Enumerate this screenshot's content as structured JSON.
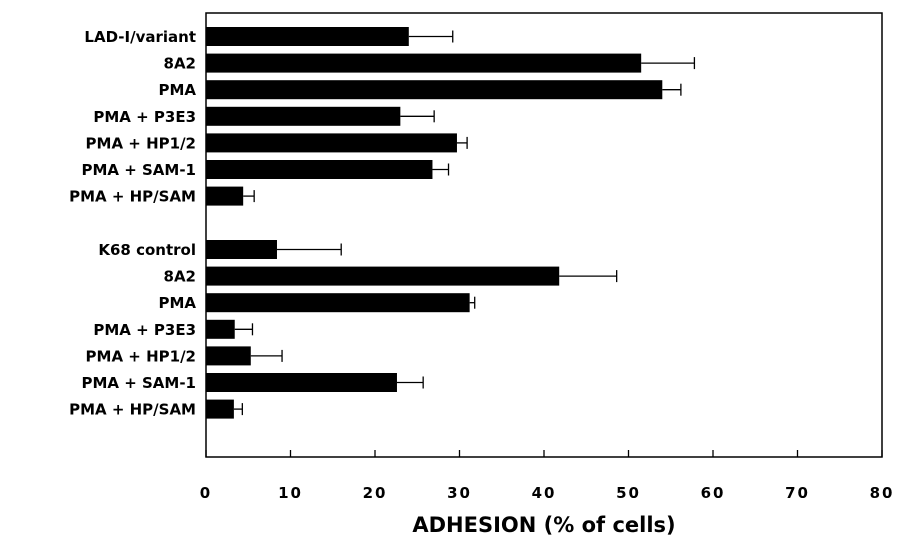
{
  "chart_data": {
    "type": "bar",
    "orientation": "horizontal",
    "xlabel": "ADHESION (% of cells)",
    "ylabel": "",
    "xlim": [
      0,
      80
    ],
    "xticks": [
      0,
      10,
      20,
      30,
      40,
      50,
      60,
      70,
      80
    ],
    "grid": false,
    "bar_color": "#000000",
    "groups": [
      {
        "categories": [
          "LAD-I/variant",
          "8A2",
          "PMA",
          "PMA + P3E3",
          "PMA + HP1/2",
          "PMA + SAM-1",
          "PMA + HP/SAM"
        ],
        "values": [
          24.0,
          51.5,
          54.0,
          23.0,
          29.7,
          26.8,
          4.4
        ],
        "errors": [
          5.2,
          6.3,
          2.2,
          4.0,
          1.2,
          1.9,
          1.3
        ]
      },
      {
        "categories": [
          "K68 control",
          "8A2",
          "PMA",
          "PMA + P3E3",
          "PMA + HP1/2",
          "PMA + SAM-1",
          "PMA + HP/SAM"
        ],
        "values": [
          8.4,
          41.8,
          31.2,
          3.4,
          5.3,
          22.6,
          3.3
        ],
        "errors": [
          7.6,
          6.8,
          0.6,
          2.1,
          3.7,
          3.1,
          1.0
        ]
      }
    ]
  }
}
